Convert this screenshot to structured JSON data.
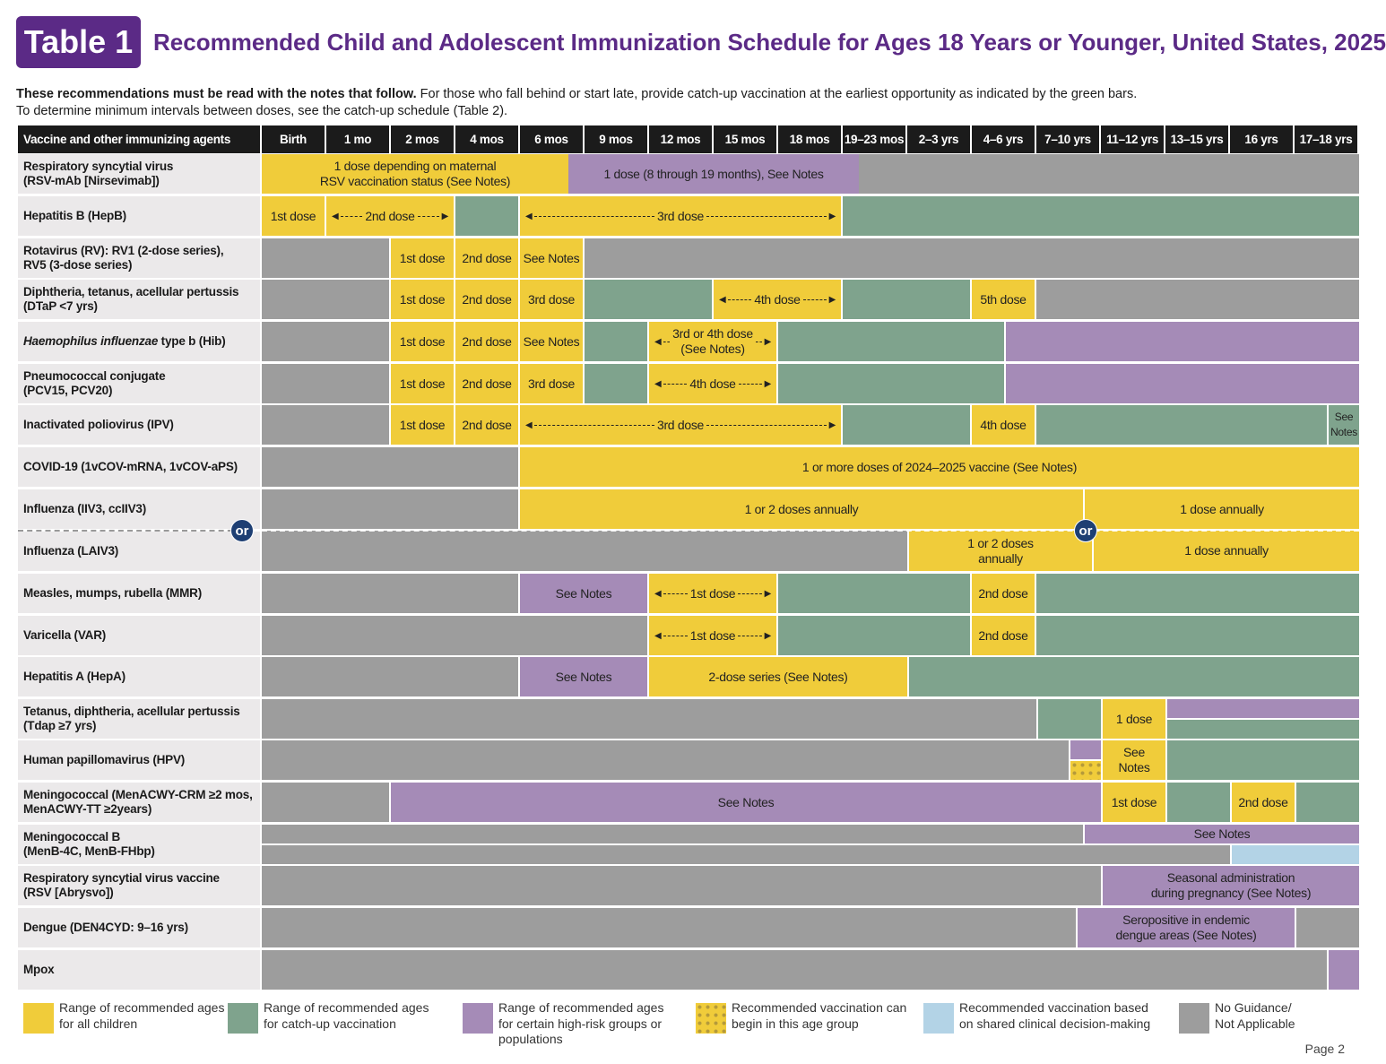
{
  "header": {
    "badge": "Table 1",
    "title": "Recommended Child and Adolescent Immunization Schedule for Ages 18 Years or Younger, United States, 2025",
    "intro_bold": "These recommendations must be read with the notes that follow.",
    "intro_1": " For those who fall behind or start late, provide catch-up vaccination at the earliest opportunity as indicated by the green bars.",
    "intro_2": "To determine minimum intervals between doses, see the catch-up schedule (Table 2)."
  },
  "colors": {
    "yellow": "#f0cc3a",
    "green": "#7fa38d",
    "purple": "#a58bb7",
    "gray": "#9d9d9d",
    "blue": "#b3d3e6",
    "title": "#5b2a86",
    "or_circle": "#1e3f73"
  },
  "columns": [
    "Vaccine and other immunizing agents",
    "Birth",
    "1 mo",
    "2 mos",
    "4 mos",
    "6 mos",
    "9 mos",
    "12 mos",
    "15 mos",
    "18 mos",
    "19–23 mos",
    "2–3 yrs",
    "4–6 yrs",
    "7–10 yrs",
    "11–12 yrs",
    "13–15 yrs",
    "16 yrs",
    "17–18 yrs"
  ],
  "or_label": "or",
  "rows": [
    {
      "label": "Respiratory syncytial virus\n(RSV-mAb [Nirsevimab])",
      "segments": [
        {
          "kind": "y",
          "text": "1 dose depending on maternal\nRSV vaccination status (See Notes)"
        },
        {
          "kind": "p",
          "text": "1 dose (8 through 19 months), See Notes"
        },
        {
          "kind": "n",
          "text": ""
        }
      ]
    },
    {
      "label": "Hepatitis B (HepB)",
      "segments": [
        {
          "kind": "y",
          "text": "1st dose"
        },
        {
          "kind": "y",
          "text": "2nd dose",
          "arrow": true
        },
        {
          "kind": "g",
          "text": ""
        },
        {
          "kind": "y",
          "text": "3rd dose",
          "arrow": true
        },
        {
          "kind": "g",
          "text": ""
        }
      ]
    },
    {
      "label": "Rotavirus (RV): RV1 (2-dose series),\nRV5 (3-dose series)",
      "segments": [
        {
          "kind": "n",
          "text": ""
        },
        {
          "kind": "y",
          "text": "1st dose"
        },
        {
          "kind": "y",
          "text": "2nd dose"
        },
        {
          "kind": "y",
          "text": "See Notes"
        },
        {
          "kind": "n",
          "text": ""
        }
      ]
    },
    {
      "label": "Diphtheria, tetanus, acellular pertussis\n(DTaP <7 yrs)",
      "segments": [
        {
          "kind": "n",
          "text": ""
        },
        {
          "kind": "y",
          "text": "1st dose"
        },
        {
          "kind": "y",
          "text": "2nd dose"
        },
        {
          "kind": "y",
          "text": "3rd dose"
        },
        {
          "kind": "g",
          "text": ""
        },
        {
          "kind": "y",
          "text": "4th dose",
          "arrow": true
        },
        {
          "kind": "g",
          "text": ""
        },
        {
          "kind": "y",
          "text": "5th dose"
        },
        {
          "kind": "n",
          "text": ""
        }
      ]
    },
    {
      "label_italic": "Haemophilus influenzae",
      "label": " type b (Hib)",
      "segments": [
        {
          "kind": "n",
          "text": ""
        },
        {
          "kind": "y",
          "text": "1st dose"
        },
        {
          "kind": "y",
          "text": "2nd dose"
        },
        {
          "kind": "y",
          "text": "See Notes"
        },
        {
          "kind": "g",
          "text": ""
        },
        {
          "kind": "y",
          "text": "3rd or 4th dose\n(See Notes)",
          "arrow": true
        },
        {
          "kind": "g",
          "text": ""
        },
        {
          "kind": "p",
          "text": ""
        }
      ]
    },
    {
      "label": "Pneumococcal conjugate\n(PCV15, PCV20)",
      "segments": [
        {
          "kind": "n",
          "text": ""
        },
        {
          "kind": "y",
          "text": "1st dose"
        },
        {
          "kind": "y",
          "text": "2nd dose"
        },
        {
          "kind": "y",
          "text": "3rd dose"
        },
        {
          "kind": "g",
          "text": ""
        },
        {
          "kind": "y",
          "text": "4th dose",
          "arrow": true
        },
        {
          "kind": "g",
          "text": ""
        },
        {
          "kind": "p",
          "text": ""
        }
      ]
    },
    {
      "label": "Inactivated poliovirus (IPV)",
      "segments": [
        {
          "kind": "n",
          "text": ""
        },
        {
          "kind": "y",
          "text": "1st dose"
        },
        {
          "kind": "y",
          "text": "2nd dose"
        },
        {
          "kind": "y",
          "text": "3rd dose",
          "arrow": true
        },
        {
          "kind": "g",
          "text": ""
        },
        {
          "kind": "y",
          "text": "4th dose"
        },
        {
          "kind": "g",
          "text": ""
        },
        {
          "kind": "g",
          "text": "See\nNotes"
        }
      ]
    },
    {
      "label": "COVID-19 (1vCOV-mRNA, 1vCOV-aPS)",
      "segments": [
        {
          "kind": "n",
          "text": ""
        },
        {
          "kind": "y",
          "text": "1 or more doses of 2024–2025 vaccine (See Notes)"
        }
      ]
    },
    {
      "label": "Influenza (IIV3, ccIIV3)",
      "label2": "Influenza (LAIV3)",
      "segments": [
        {
          "kind": "n",
          "text": ""
        },
        {
          "kind": "y",
          "text": "1 or 2 doses annually"
        },
        {
          "kind": "y",
          "text": "1 dose annually"
        },
        {
          "kind": "n",
          "text": ""
        },
        {
          "kind": "y",
          "text": "1 or 2 doses\nannually"
        },
        {
          "kind": "y",
          "text": "1 dose annually"
        }
      ]
    },
    {
      "label": "Measles, mumps, rubella (MMR)",
      "segments": [
        {
          "kind": "n",
          "text": ""
        },
        {
          "kind": "p",
          "text": "See Notes"
        },
        {
          "kind": "y",
          "text": "1st dose",
          "arrow": true
        },
        {
          "kind": "g",
          "text": ""
        },
        {
          "kind": "y",
          "text": "2nd dose"
        },
        {
          "kind": "g",
          "text": ""
        }
      ]
    },
    {
      "label": "Varicella (VAR)",
      "segments": [
        {
          "kind": "n",
          "text": ""
        },
        {
          "kind": "y",
          "text": "1st dose",
          "arrow": true
        },
        {
          "kind": "g",
          "text": ""
        },
        {
          "kind": "y",
          "text": "2nd dose"
        },
        {
          "kind": "g",
          "text": ""
        }
      ]
    },
    {
      "label": "Hepatitis A (HepA)",
      "segments": [
        {
          "kind": "n",
          "text": ""
        },
        {
          "kind": "p",
          "text": "See Notes"
        },
        {
          "kind": "y",
          "text": "2-dose series (See Notes)"
        },
        {
          "kind": "g",
          "text": ""
        }
      ]
    },
    {
      "label": "Tetanus, diphtheria, acellular pertussis\n(Tdap ≥7 yrs)",
      "segments": [
        {
          "kind": "n",
          "text": ""
        },
        {
          "kind": "g",
          "text": ""
        },
        {
          "kind": "y",
          "text": "1 dose"
        },
        {
          "kind": "p",
          "text": ""
        },
        {
          "kind": "g",
          "text": ""
        }
      ]
    },
    {
      "label": "Human papillomavirus (HPV)",
      "segments": [
        {
          "kind": "n",
          "text": ""
        },
        {
          "kind": "p",
          "text": ""
        },
        {
          "kind": "d",
          "text": ""
        },
        {
          "kind": "y",
          "text": "See\nNotes"
        },
        {
          "kind": "g",
          "text": ""
        }
      ]
    },
    {
      "label": "Meningococcal (MenACWY-CRM ≥2 mos,\nMenACWY-TT ≥2years)",
      "segments": [
        {
          "kind": "n",
          "text": ""
        },
        {
          "kind": "p",
          "text": "See Notes"
        },
        {
          "kind": "y",
          "text": "1st dose"
        },
        {
          "kind": "g",
          "text": ""
        },
        {
          "kind": "y",
          "text": "2nd dose"
        },
        {
          "kind": "g",
          "text": ""
        }
      ]
    },
    {
      "label": "Meningococcal B\n(MenB-4C, MenB-FHbp)",
      "segments": [
        {
          "kind": "n",
          "text": ""
        },
        {
          "kind": "p",
          "text": "See Notes"
        },
        {
          "kind": "n",
          "text": ""
        },
        {
          "kind": "b",
          "text": ""
        }
      ]
    },
    {
      "label": "Respiratory syncytial virus vaccine\n(RSV [Abrysvo])",
      "segments": [
        {
          "kind": "n",
          "text": ""
        },
        {
          "kind": "p",
          "text": "Seasonal administration\nduring pregnancy (See Notes)"
        }
      ]
    },
    {
      "label": "Dengue (DEN4CYD: 9–16 yrs)",
      "segments": [
        {
          "kind": "n",
          "text": ""
        },
        {
          "kind": "p",
          "text": "Seropositive in endemic\ndengue areas (See Notes)"
        },
        {
          "kind": "n",
          "text": ""
        }
      ]
    },
    {
      "label": "Mpox",
      "segments": [
        {
          "kind": "n",
          "text": ""
        },
        {
          "kind": "p",
          "text": ""
        }
      ]
    }
  ],
  "legend": [
    {
      "kind": "y",
      "text": "Range of recommended ages\nfor all children"
    },
    {
      "kind": "g",
      "text": "Range of recommended ages\nfor catch-up vaccination"
    },
    {
      "kind": "p",
      "text": "Range of recommended ages\nfor certain high-risk groups or\npopulations"
    },
    {
      "kind": "d",
      "text": "Recommended vaccination can\nbegin in this age group"
    },
    {
      "kind": "b",
      "text": "Recommended vaccination based\non shared clinical decision-making"
    },
    {
      "kind": "n",
      "text": "No Guidance/\nNot Applicable"
    }
  ],
  "footer": {
    "page": "Page 2"
  }
}
